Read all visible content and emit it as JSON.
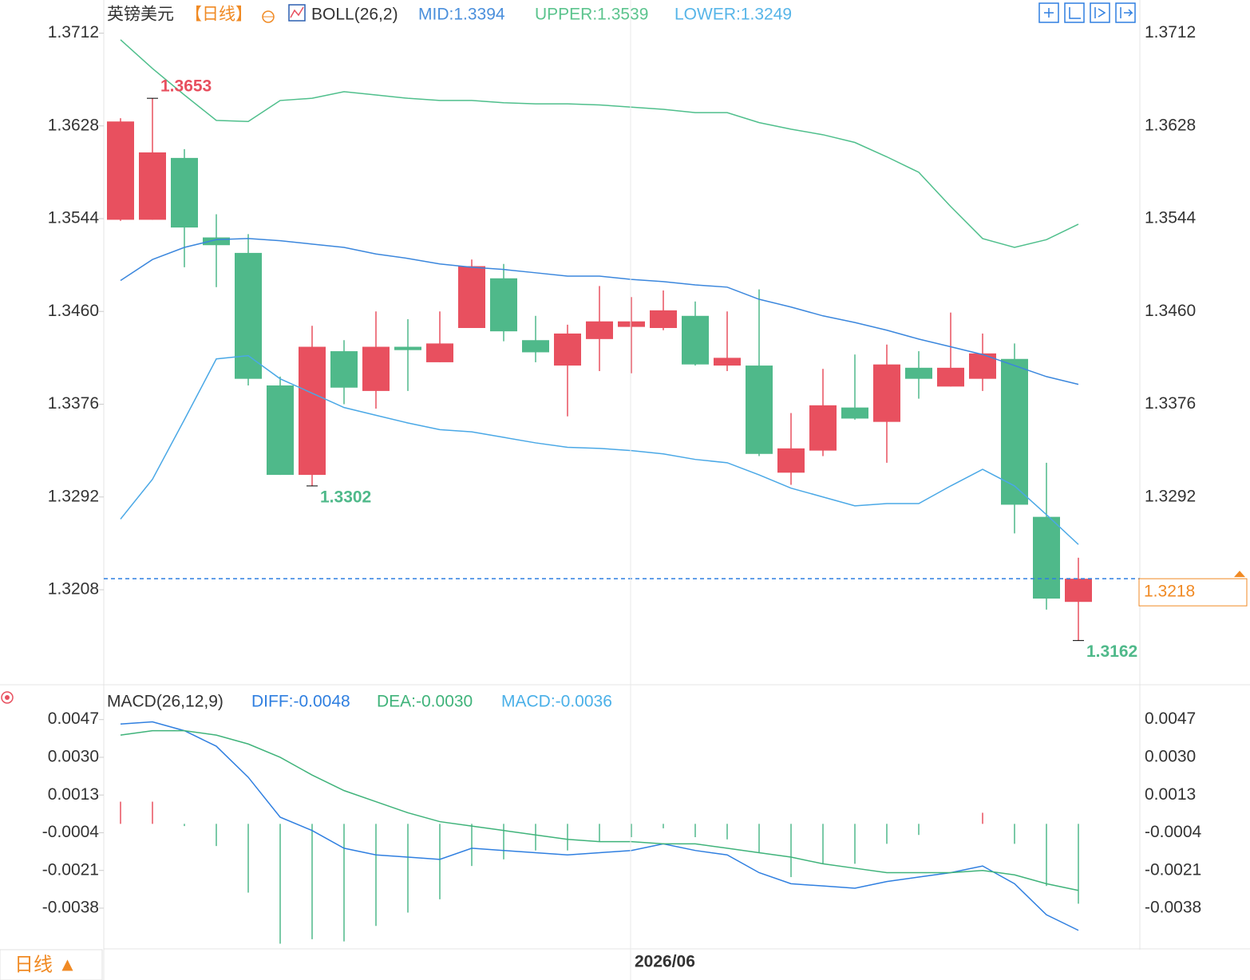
{
  "chart_data": [
    {
      "type": "candlestick",
      "title": "英镑美元",
      "period": "【日线】",
      "indicator": "BOLL(26,2)",
      "up_color": "#e8505f",
      "down_color": "#4fb98a",
      "open": [
        1.3543,
        1.3543,
        1.3599,
        1.3527,
        1.3513,
        1.3393,
        1.3312,
        1.3424,
        1.3388,
        1.3428,
        1.3414,
        1.3445,
        1.349,
        1.3434,
        1.3411,
        1.3435,
        1.3446,
        1.3445,
        1.3456,
        1.3411,
        1.3411,
        1.3314,
        1.3334,
        1.3373,
        1.336,
        1.3409,
        1.3392,
        1.3399,
        1.3417,
        1.3274,
        1.3197
      ],
      "high": [
        1.3635,
        1.3653,
        1.3607,
        1.3548,
        1.353,
        1.3401,
        1.3447,
        1.3434,
        1.346,
        1.3453,
        1.346,
        1.3507,
        1.3503,
        1.3456,
        1.3448,
        1.3483,
        1.3473,
        1.3479,
        1.3469,
        1.346,
        1.348,
        1.3368,
        1.3408,
        1.3421,
        1.343,
        1.3424,
        1.3459,
        1.344,
        1.3431,
        1.3323,
        1.3237
      ],
      "low": [
        1.3542,
        1.3543,
        1.35,
        1.3482,
        1.3393,
        1.3312,
        1.3302,
        1.3376,
        1.3372,
        1.3388,
        1.3414,
        1.3445,
        1.3433,
        1.3414,
        1.3365,
        1.3406,
        1.3404,
        1.3443,
        1.3411,
        1.3406,
        1.3329,
        1.3303,
        1.3329,
        1.3362,
        1.3323,
        1.3381,
        1.3392,
        1.3388,
        1.3259,
        1.319,
        1.3162
      ],
      "close": [
        1.3632,
        1.3604,
        1.3536,
        1.352,
        1.3399,
        1.3312,
        1.3428,
        1.3391,
        1.3428,
        1.3425,
        1.3431,
        1.3501,
        1.3442,
        1.3423,
        1.344,
        1.3451,
        1.3451,
        1.3461,
        1.3412,
        1.3418,
        1.3331,
        1.3336,
        1.3375,
        1.3363,
        1.3412,
        1.3399,
        1.3409,
        1.3422,
        1.3285,
        1.32,
        1.3218
      ],
      "series": [
        {
          "name": "MID:1.3394",
          "color": "#3b87dd",
          "text_color": "#4a8fdc",
          "values": [
            1.3488,
            1.3507,
            1.3518,
            1.3525,
            1.3526,
            1.3524,
            1.3521,
            1.3518,
            1.3512,
            1.3508,
            1.3503,
            1.35,
            1.3498,
            1.3495,
            1.3492,
            1.3492,
            1.3489,
            1.3487,
            1.3484,
            1.3482,
            1.3471,
            1.3464,
            1.3456,
            1.345,
            1.3443,
            1.3435,
            1.3428,
            1.3421,
            1.3411,
            1.3401,
            1.3394
          ]
        },
        {
          "name": "UPPER:1.3539",
          "color": "#4fbf8c",
          "text_color": "#5cc48e",
          "values": [
            1.3706,
            1.368,
            1.3656,
            1.3633,
            1.3632,
            1.3651,
            1.3653,
            1.3659,
            1.3656,
            1.3653,
            1.3651,
            1.3651,
            1.3649,
            1.3648,
            1.3648,
            1.3647,
            1.3645,
            1.3643,
            1.364,
            1.364,
            1.3631,
            1.3625,
            1.362,
            1.3613,
            1.36,
            1.3586,
            1.3555,
            1.3526,
            1.3518,
            1.3525,
            1.3539
          ]
        },
        {
          "name": "LOWER:1.3249",
          "color": "#4aa8e6",
          "text_color": "#57b5e8",
          "values": [
            1.3272,
            1.3308,
            1.3362,
            1.3417,
            1.342,
            1.3399,
            1.3386,
            1.3373,
            1.3366,
            1.3359,
            1.3353,
            1.3351,
            1.3346,
            1.3341,
            1.3337,
            1.3336,
            1.3334,
            1.3331,
            1.3326,
            1.3323,
            1.3312,
            1.33,
            1.3292,
            1.3284,
            1.3286,
            1.3286,
            1.3302,
            1.3317,
            1.3302,
            1.3276,
            1.3249
          ]
        }
      ],
      "annotations": [
        1.3653,
        1.3302,
        1.3162
      ],
      "high_label_color": "#e8505f",
      "low_label_color": "#4fb98a",
      "last_price": 1.3218,
      "last_price_color": "#f08a24",
      "ylim": [
        1.3122,
        1.3742
      ],
      "yticks": [
        1.3712,
        1.3628,
        1.3544,
        {
          "value": 1.346,
          "label": "1.3460"
        },
        1.3376,
        1.3292,
        1.3208
      ],
      "grid": false
    },
    {
      "type": "macd",
      "title": "MACD(26,12,9)",
      "categories": [
        null,
        null,
        null,
        null,
        null,
        null,
        null,
        null,
        null,
        null,
        null,
        null,
        null,
        null,
        null,
        null,
        "2026/06",
        null,
        null,
        null,
        null,
        null,
        null,
        null,
        null,
        null,
        null,
        null,
        null,
        null,
        null
      ],
      "series": [
        {
          "name": "DIFF:-0.0048",
          "color": "#2f7fe0",
          "values": [
            0.0045,
            0.0046,
            0.0042,
            0.0035,
            0.0021,
            0.0003,
            -0.0003,
            -0.0011,
            -0.0014,
            -0.0015,
            -0.0016,
            -0.0011,
            -0.0012,
            -0.0013,
            -0.0014,
            -0.0013,
            -0.0012,
            -0.0009,
            -0.0012,
            -0.0014,
            -0.0022,
            -0.0027,
            -0.0028,
            -0.0029,
            -0.0026,
            -0.0024,
            -0.0022,
            -0.0019,
            -0.0027,
            -0.0041,
            -0.0048
          ]
        },
        {
          "name": "DEA:-0.0030",
          "color": "#3fb37a",
          "values": [
            0.004,
            0.0042,
            0.0042,
            0.004,
            0.0036,
            0.003,
            0.0022,
            0.0015,
            0.001,
            0.0005,
            0.0001,
            -0.0001,
            -0.0003,
            -0.0005,
            -0.0007,
            -0.0008,
            -0.0008,
            -0.0009,
            -0.0009,
            -0.0011,
            -0.0013,
            -0.0015,
            -0.0018,
            -0.002,
            -0.0022,
            -0.0022,
            -0.0022,
            -0.0021,
            -0.0023,
            -0.0027,
            -0.003
          ]
        }
      ],
      "histogram": {
        "name": "MACD:-0.0036",
        "color": "#4ab0e8",
        "up_color": "#e8505f",
        "down_color": "#4fb98a",
        "values": [
          0.001,
          0.001,
          -0.0001,
          -0.001,
          -0.0031,
          -0.0054,
          -0.0052,
          -0.0053,
          -0.0046,
          -0.004,
          -0.0034,
          -0.0019,
          -0.0016,
          -0.0012,
          -0.0012,
          -0.0008,
          -0.0006,
          -0.0002,
          -0.0006,
          -0.0007,
          -0.0013,
          -0.0024,
          -0.0018,
          -0.0018,
          -0.0009,
          -0.0005,
          0,
          0.0005,
          -0.0009,
          -0.0028,
          -0.0036
        ]
      },
      "ylim": [
        -0.0056,
        0.0062
      ],
      "yticks": [
        0.0047,
        {
          "value": 0.003,
          "label": "0.0030"
        },
        0.0013,
        -0.0004,
        -0.0021,
        -0.0038
      ],
      "grid": false
    }
  ],
  "period_button": "日线 ▲"
}
